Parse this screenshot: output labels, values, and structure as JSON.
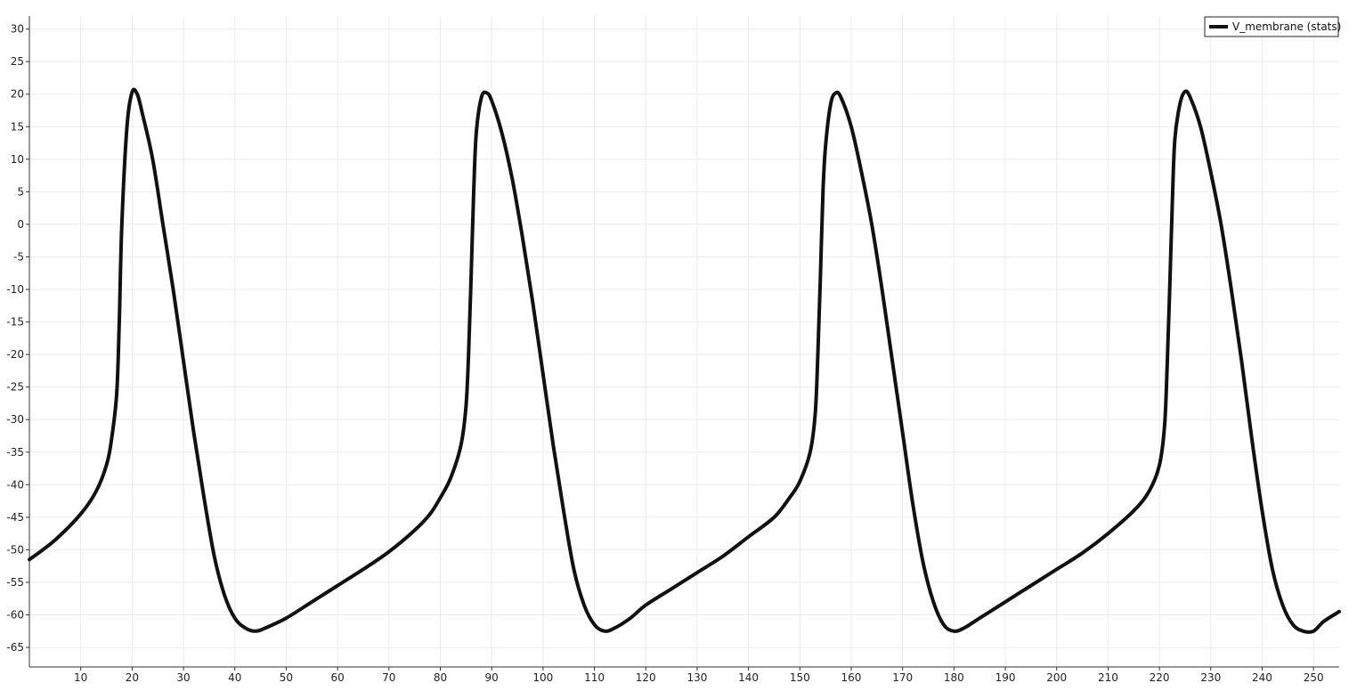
{
  "chart_data": {
    "type": "line",
    "title": "",
    "xlabel": "",
    "ylabel": "",
    "xlim": [
      0,
      255
    ],
    "ylim": [
      -68,
      32
    ],
    "x_ticks": [
      10,
      20,
      30,
      40,
      50,
      60,
      70,
      80,
      90,
      100,
      110,
      120,
      130,
      140,
      150,
      160,
      170,
      180,
      190,
      200,
      210,
      220,
      230,
      240,
      250
    ],
    "y_ticks": [
      30,
      25,
      20,
      15,
      10,
      5,
      0,
      -5,
      -10,
      -15,
      -20,
      -25,
      -30,
      -35,
      -40,
      -45,
      -50,
      -55,
      -60,
      -65
    ],
    "grid": true,
    "legend_position": "top-right",
    "colors": {
      "line": "#111111",
      "grid": "#ececec",
      "axis": "#333333"
    },
    "series": [
      {
        "name": "V_membrane (stats)",
        "points": [
          [
            0,
            -51.5
          ],
          [
            5,
            -48.5
          ],
          [
            10,
            -44.5
          ],
          [
            13,
            -41
          ],
          [
            15,
            -37
          ],
          [
            16,
            -33
          ],
          [
            17,
            -26
          ],
          [
            17.5,
            -15
          ],
          [
            18,
            0
          ],
          [
            19,
            15
          ],
          [
            20,
            20.3
          ],
          [
            21,
            20
          ],
          [
            22,
            17
          ],
          [
            24,
            10
          ],
          [
            26,
            0
          ],
          [
            28,
            -10
          ],
          [
            30,
            -21
          ],
          [
            32,
            -32
          ],
          [
            34,
            -42
          ],
          [
            36,
            -51
          ],
          [
            38,
            -57
          ],
          [
            40,
            -60.5
          ],
          [
            42,
            -62
          ],
          [
            44,
            -62.5
          ],
          [
            46,
            -62
          ],
          [
            50,
            -60.5
          ],
          [
            55,
            -58
          ],
          [
            60,
            -55.5
          ],
          [
            65,
            -53
          ],
          [
            70,
            -50.3
          ],
          [
            75,
            -47
          ],
          [
            78,
            -44.5
          ],
          [
            80,
            -42
          ],
          [
            82,
            -39
          ],
          [
            84,
            -34
          ],
          [
            85,
            -28
          ],
          [
            85.5,
            -20
          ],
          [
            86,
            -8
          ],
          [
            86.5,
            5
          ],
          [
            87,
            14
          ],
          [
            88,
            19.5
          ],
          [
            89,
            20.2
          ],
          [
            90,
            19
          ],
          [
            92,
            14
          ],
          [
            94,
            7
          ],
          [
            96,
            -2
          ],
          [
            98,
            -12
          ],
          [
            100,
            -23
          ],
          [
            102,
            -34
          ],
          [
            104,
            -44
          ],
          [
            106,
            -53
          ],
          [
            108,
            -58.5
          ],
          [
            110,
            -61.5
          ],
          [
            112,
            -62.5
          ],
          [
            114,
            -62
          ],
          [
            117,
            -60.5
          ],
          [
            120,
            -58.5
          ],
          [
            125,
            -56
          ],
          [
            130,
            -53.5
          ],
          [
            135,
            -51
          ],
          [
            140,
            -48
          ],
          [
            145,
            -45
          ],
          [
            148,
            -42
          ],
          [
            150,
            -39.5
          ],
          [
            152,
            -35
          ],
          [
            153,
            -29
          ],
          [
            153.5,
            -20
          ],
          [
            154,
            -8
          ],
          [
            154.5,
            5
          ],
          [
            155,
            12
          ],
          [
            156,
            18.5
          ],
          [
            157,
            20.2
          ],
          [
            158,
            19.5
          ],
          [
            160,
            15
          ],
          [
            162,
            8
          ],
          [
            164,
            0
          ],
          [
            166,
            -10
          ],
          [
            168,
            -21
          ],
          [
            170,
            -32
          ],
          [
            172,
            -43
          ],
          [
            174,
            -52
          ],
          [
            176,
            -58
          ],
          [
            178,
            -61.5
          ],
          [
            180,
            -62.5
          ],
          [
            182,
            -62
          ],
          [
            185,
            -60.5
          ],
          [
            190,
            -58
          ],
          [
            195,
            -55.5
          ],
          [
            200,
            -53
          ],
          [
            205,
            -50.5
          ],
          [
            210,
            -47.5
          ],
          [
            215,
            -44
          ],
          [
            218,
            -41
          ],
          [
            220,
            -37
          ],
          [
            221,
            -31
          ],
          [
            221.5,
            -22
          ],
          [
            222,
            -10
          ],
          [
            222.5,
            3
          ],
          [
            223,
            13
          ],
          [
            224,
            18.5
          ],
          [
            225,
            20.4
          ],
          [
            226,
            19.5
          ],
          [
            228,
            15
          ],
          [
            230,
            8
          ],
          [
            232,
            0
          ],
          [
            234,
            -10
          ],
          [
            236,
            -21
          ],
          [
            238,
            -33
          ],
          [
            240,
            -44
          ],
          [
            242,
            -53
          ],
          [
            244,
            -58.5
          ],
          [
            246,
            -61.5
          ],
          [
            248,
            -62.5
          ],
          [
            250,
            -62.5
          ],
          [
            252,
            -61
          ],
          [
            255,
            -59.5
          ]
        ]
      }
    ]
  }
}
